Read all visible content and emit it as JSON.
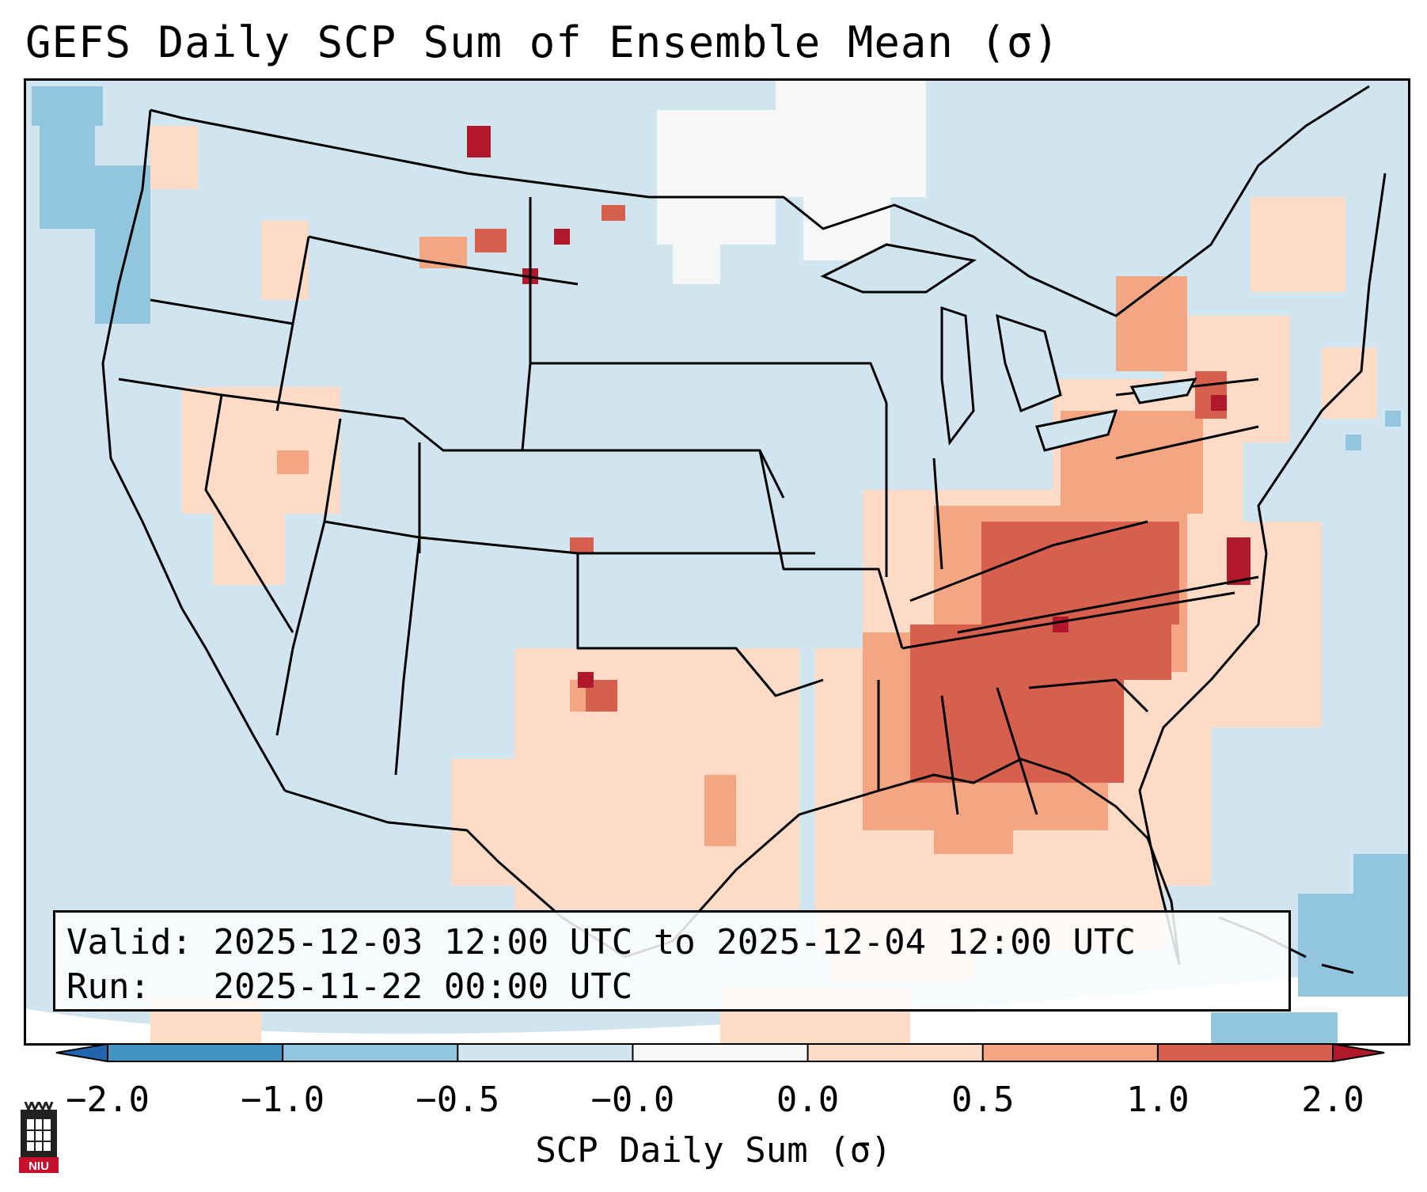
{
  "title": "GEFS Daily SCP Sum of Ensemble Mean (σ)",
  "info": {
    "valid_label": "Valid:",
    "valid_value": "2025-12-03 12:00 UTC to 2025-12-04 12:00 UTC",
    "run_label": "Run:",
    "run_value": "2025-11-22 00:00 UTC"
  },
  "colorbar": {
    "label": "SCP Daily Sum (σ)",
    "ticks": [
      "−2.0",
      "−1.0",
      "−0.5",
      "−0.0",
      "0.0",
      "0.5",
      "1.0",
      "2.0"
    ],
    "colors": [
      "#2166ac",
      "#4393c3",
      "#92c5de",
      "#d1e5f0",
      "#f7f7f7",
      "#fddbc7",
      "#f4a582",
      "#d6604d",
      "#b2182b"
    ]
  },
  "map": {
    "background_color": "#d1e5f0",
    "region": "Contiguous United States",
    "field": "SCP daily sum anomaly",
    "highlight_region": "Southeast US / Mid-Atlantic"
  },
  "logo_text": "NIU"
}
